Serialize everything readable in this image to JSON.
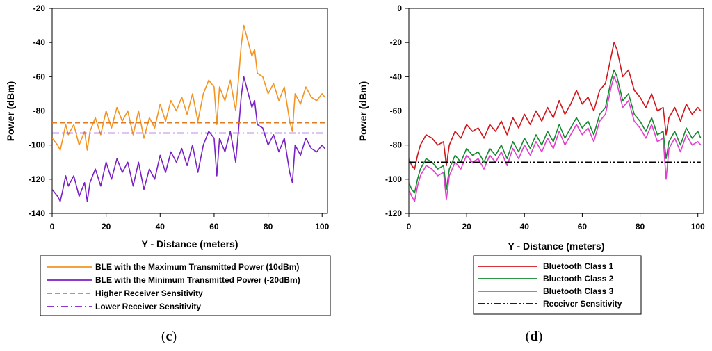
{
  "chart_data": [
    {
      "type": "line",
      "panel_label": "(c)",
      "panel_letter": "c",
      "xlabel": "Y - Distance (meters)",
      "ylabel": "Power (dBm)",
      "xlim": [
        0,
        102
      ],
      "ylim": [
        -140,
        -20
      ],
      "xticks": [
        "0",
        "20",
        "40",
        "60",
        "80",
        "100"
      ],
      "yticks": [
        "-20",
        "-40",
        "-60",
        "-80",
        "-100",
        "-120",
        "-140"
      ],
      "series": [
        {
          "name": "BLE with the Maximum Transmitted Power (10dBm)",
          "color": "#F39422",
          "style": "solid",
          "x": [
            0,
            2,
            3,
            4,
            5,
            6,
            8,
            10,
            12,
            13,
            14,
            16,
            18,
            20,
            22,
            24,
            26,
            28,
            30,
            32,
            34,
            36,
            38,
            40,
            42,
            44,
            46,
            48,
            50,
            52,
            54,
            56,
            58,
            60,
            61,
            62,
            64,
            66,
            68,
            69,
            70,
            71,
            72,
            74,
            75,
            76,
            78,
            80,
            82,
            84,
            86,
            88,
            89,
            90,
            92,
            94,
            96,
            98,
            100,
            101
          ],
          "y": [
            -96,
            -100,
            -103,
            -96,
            -88,
            -94,
            -88,
            -100,
            -92,
            -103,
            -92,
            -84,
            -94,
            -80,
            -90,
            -78,
            -86,
            -80,
            -94,
            -80,
            -96,
            -84,
            -90,
            -76,
            -86,
            -74,
            -80,
            -72,
            -82,
            -70,
            -86,
            -70,
            -62,
            -66,
            -88,
            -66,
            -74,
            -62,
            -80,
            -62,
            -42,
            -30,
            -36,
            -48,
            -44,
            -58,
            -60,
            -70,
            -64,
            -74,
            -66,
            -86,
            -92,
            -70,
            -76,
            -66,
            -72,
            -74,
            -70,
            -72
          ]
        },
        {
          "name": "BLE with the Minimum Transmitted Power (-20dBm)",
          "color": "#7B1FC6",
          "style": "solid",
          "x": [
            0,
            2,
            3,
            4,
            5,
            6,
            8,
            10,
            12,
            13,
            14,
            16,
            18,
            20,
            22,
            24,
            26,
            28,
            30,
            32,
            34,
            36,
            38,
            40,
            42,
            44,
            46,
            48,
            50,
            52,
            54,
            56,
            58,
            60,
            61,
            62,
            64,
            66,
            68,
            69,
            70,
            71,
            72,
            74,
            75,
            76,
            78,
            80,
            82,
            84,
            86,
            88,
            89,
            90,
            92,
            94,
            96,
            98,
            100,
            101
          ],
          "y": [
            -126,
            -130,
            -133,
            -126,
            -118,
            -124,
            -118,
            -130,
            -122,
            -133,
            -122,
            -114,
            -124,
            -110,
            -120,
            -108,
            -116,
            -110,
            -124,
            -110,
            -126,
            -114,
            -120,
            -106,
            -116,
            -104,
            -110,
            -102,
            -112,
            -100,
            -116,
            -100,
            -92,
            -96,
            -118,
            -96,
            -104,
            -92,
            -110,
            -92,
            -72,
            -60,
            -66,
            -78,
            -74,
            -88,
            -90,
            -100,
            -94,
            -104,
            -96,
            -116,
            -122,
            -100,
            -106,
            -96,
            -102,
            -104,
            -100,
            -102
          ]
        },
        {
          "name": "Higher Receiver Sensitivity",
          "color": "#E07B20",
          "style": "dashed",
          "x": [
            0,
            101
          ],
          "y": [
            -87,
            -87
          ]
        },
        {
          "name": "Lower Receiver Sensitivity",
          "color": "#7B1FC6",
          "style": "dashdot",
          "x": [
            0,
            101
          ],
          "y": [
            -93,
            -93
          ]
        }
      ]
    },
    {
      "type": "line",
      "panel_label": "(d)",
      "panel_letter": "d",
      "xlabel": "Y - Distance (meters)",
      "ylabel": "Power (dBm)",
      "xlim": [
        0,
        102
      ],
      "ylim": [
        -120,
        0
      ],
      "xticks": [
        "0",
        "20",
        "40",
        "60",
        "80",
        "100"
      ],
      "yticks": [
        "0",
        "-20",
        "-40",
        "-60",
        "-80",
        "-100",
        "-120"
      ],
      "series": [
        {
          "name": "Bluetooth Class 1",
          "color": "#D0161B",
          "style": "solid",
          "x": [
            0,
            1,
            2,
            3,
            4,
            6,
            8,
            10,
            12,
            13,
            14,
            16,
            18,
            20,
            22,
            24,
            26,
            28,
            30,
            32,
            34,
            36,
            38,
            40,
            42,
            44,
            46,
            48,
            50,
            52,
            54,
            56,
            58,
            60,
            62,
            64,
            66,
            68,
            70,
            71,
            72,
            74,
            76,
            78,
            80,
            82,
            84,
            86,
            88,
            89,
            90,
            92,
            94,
            96,
            98,
            100,
            101
          ],
          "y": [
            -88,
            -92,
            -94,
            -86,
            -80,
            -74,
            -76,
            -80,
            -78,
            -92,
            -80,
            -72,
            -76,
            -68,
            -72,
            -70,
            -76,
            -68,
            -72,
            -66,
            -74,
            -64,
            -70,
            -62,
            -68,
            -60,
            -66,
            -58,
            -64,
            -54,
            -62,
            -56,
            -48,
            -56,
            -52,
            -60,
            -48,
            -44,
            -28,
            -20,
            -24,
            -40,
            -36,
            -48,
            -52,
            -58,
            -50,
            -60,
            -58,
            -74,
            -64,
            -58,
            -66,
            -56,
            -62,
            -58,
            -60
          ]
        },
        {
          "name": "Bluetooth Class 2",
          "color": "#138A2E",
          "style": "solid",
          "x": [
            0,
            1,
            2,
            3,
            4,
            6,
            8,
            10,
            12,
            13,
            14,
            16,
            18,
            20,
            22,
            24,
            26,
            28,
            30,
            32,
            34,
            36,
            38,
            40,
            42,
            44,
            46,
            48,
            50,
            52,
            54,
            56,
            58,
            60,
            62,
            64,
            66,
            68,
            70,
            71,
            72,
            74,
            76,
            78,
            80,
            82,
            84,
            86,
            88,
            89,
            90,
            92,
            94,
            96,
            98,
            100,
            101
          ],
          "y": [
            -102,
            -106,
            -108,
            -100,
            -94,
            -88,
            -90,
            -94,
            -92,
            -106,
            -94,
            -86,
            -90,
            -82,
            -86,
            -84,
            -90,
            -82,
            -86,
            -80,
            -88,
            -78,
            -84,
            -76,
            -82,
            -74,
            -80,
            -72,
            -78,
            -68,
            -76,
            -70,
            -64,
            -70,
            -66,
            -74,
            -62,
            -58,
            -42,
            -36,
            -40,
            -54,
            -50,
            -62,
            -66,
            -72,
            -64,
            -74,
            -72,
            -88,
            -78,
            -72,
            -80,
            -70,
            -76,
            -72,
            -76
          ]
        },
        {
          "name": "Bluetooth Class 3",
          "color": "#E53CD0",
          "style": "solid",
          "x": [
            0,
            1,
            2,
            3,
            4,
            6,
            8,
            10,
            12,
            13,
            14,
            16,
            18,
            20,
            22,
            24,
            26,
            28,
            30,
            32,
            34,
            36,
            38,
            40,
            42,
            44,
            46,
            48,
            50,
            52,
            54,
            56,
            58,
            60,
            62,
            64,
            66,
            68,
            70,
            71,
            72,
            74,
            76,
            78,
            80,
            82,
            84,
            86,
            88,
            89,
            90,
            92,
            94,
            96,
            98,
            100,
            101
          ],
          "y": [
            -106,
            -110,
            -113,
            -104,
            -98,
            -92,
            -94,
            -98,
            -96,
            -112,
            -98,
            -90,
            -94,
            -86,
            -90,
            -88,
            -94,
            -86,
            -90,
            -84,
            -92,
            -82,
            -88,
            -80,
            -86,
            -78,
            -84,
            -76,
            -82,
            -72,
            -80,
            -74,
            -68,
            -74,
            -70,
            -78,
            -66,
            -62,
            -46,
            -40,
            -44,
            -58,
            -54,
            -66,
            -70,
            -76,
            -68,
            -78,
            -76,
            -100,
            -82,
            -76,
            -84,
            -74,
            -80,
            -78,
            -80
          ]
        },
        {
          "name": "Receiver Sensitivity",
          "color": "#000000",
          "style": "dashdotdot",
          "x": [
            0,
            101
          ],
          "y": [
            -90,
            -90
          ]
        }
      ]
    }
  ]
}
